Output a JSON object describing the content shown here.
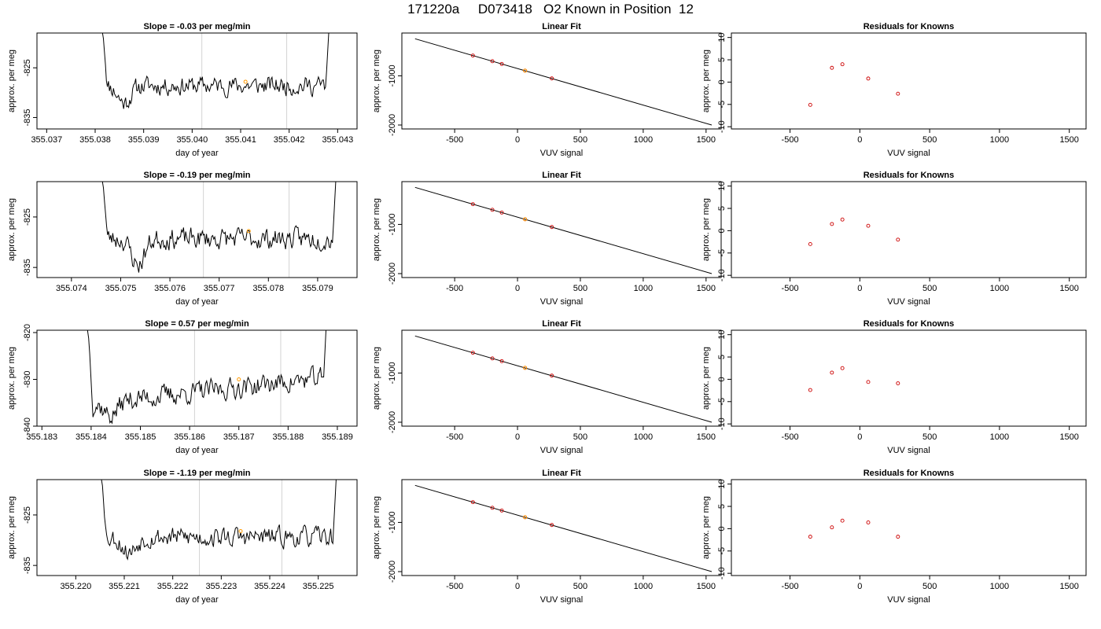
{
  "page": {
    "title": "171220a     D073418   O2 Known in Position  12"
  },
  "colors": {
    "trace": "#000000",
    "known_point": "#cc0000",
    "sample_point": "#ff9900",
    "marker_line": "#d3d3d3",
    "fit_line": "#000000"
  },
  "chart_data": [
    {
      "type": "line",
      "row": 0,
      "col": 0,
      "title": "Slope =  -0.03  per meg/min",
      "xlabel": "day of year",
      "ylabel": "approx. per meg",
      "xlim": [
        355.0368,
        355.0434
      ],
      "ylim": [
        -837.3,
        -818.0
      ],
      "xticks": [
        355.037,
        355.038,
        355.039,
        355.04,
        355.041,
        355.042,
        355.043
      ],
      "yticks": [
        -825,
        -835
      ],
      "trace": {
        "x_start": 355.03817,
        "x_end": 355.04275,
        "base": -828.6,
        "amp": 1.8,
        "seed": 11,
        "left_spike_to": -818.0,
        "right_spike_to": -818.0,
        "low_dip": [
          355.0386,
          -833.5
        ]
      },
      "vlines": [
        355.0402,
        355.04195
      ],
      "sample_point": [
        355.0411,
        -827.8
      ]
    },
    {
      "type": "line",
      "row": 1,
      "col": 0,
      "title": "Slope =  -0.19  per meg/min",
      "xlabel": "day of year",
      "ylabel": "approx. per meg",
      "xlim": [
        355.0733,
        355.0798
      ],
      "ylim": [
        -837.0,
        -818.0
      ],
      "xticks": [
        355.074,
        355.075,
        355.076,
        355.077,
        355.078,
        355.079
      ],
      "yticks": [
        -825,
        -835
      ],
      "trace": {
        "x_start": 355.07465,
        "x_end": 355.0793,
        "base": -829.3,
        "amp": 2.0,
        "seed": 23,
        "left_spike_to": -818.0,
        "right_spike_to": -818.0,
        "low_dip": [
          355.07535,
          -836.8
        ]
      },
      "vlines": [
        355.07668,
        355.07842
      ],
      "sample_point": [
        355.0776,
        -827.8
      ]
    },
    {
      "type": "line",
      "row": 2,
      "col": 0,
      "title": "Slope =  0.57  per meg/min",
      "xlabel": "day of year",
      "ylabel": "approx. per meg",
      "xlim": [
        355.1829,
        355.1894
      ],
      "ylim": [
        -840.0,
        -819.5
      ],
      "xticks": [
        355.183,
        355.184,
        355.185,
        355.186,
        355.187,
        355.188,
        355.189
      ],
      "yticks": [
        -820,
        -830,
        -840
      ],
      "trace": {
        "x_start": 355.18395,
        "x_end": 355.1887,
        "base": -832.5,
        "amp": 2.2,
        "seed": 37,
        "trend": 5.5,
        "left_spike_to": -819.5,
        "right_spike_to": -819.5,
        "low_dip": [
          355.1844,
          -839.5
        ]
      },
      "vlines": [
        355.1861,
        355.18785
      ],
      "sample_point": [
        355.187,
        -830.0
      ]
    },
    {
      "type": "line",
      "row": 3,
      "col": 0,
      "title": "Slope =  -1.19  per meg/min",
      "xlabel": "day of year",
      "ylabel": "approx. per meg",
      "xlim": [
        355.2192,
        355.2258
      ],
      "ylim": [
        -837.0,
        -818.0
      ],
      "xticks": [
        355.22,
        355.221,
        355.222,
        355.223,
        355.224,
        355.225
      ],
      "yticks": [
        -825,
        -835
      ],
      "trace": {
        "x_start": 355.22055,
        "x_end": 355.2253,
        "base": -829.4,
        "amp": 1.9,
        "seed": 53,
        "left_spike_to": -818.0,
        "right_spike_to": -818.0,
        "low_dip": [
          355.2211,
          -833.8
        ]
      },
      "vlines": [
        355.22255,
        355.22425
      ],
      "sample_point": [
        355.2234,
        -828.2
      ]
    },
    {
      "type": "scatter",
      "row": 0,
      "col": 1,
      "title": "Linear Fit",
      "xlabel": "VUV signal",
      "ylabel": "approx. per meg",
      "xlim": [
        -920,
        1620
      ],
      "ylim": [
        -2080,
        -130
      ],
      "xticks": [
        -500,
        0,
        500,
        1000,
        1500
      ],
      "yticks": [
        -1000,
        -2000
      ],
      "fit_line": [
        [
          -815,
          -247
        ],
        [
          1545,
          -2000
        ]
      ],
      "points": [
        [
          -355,
          -588
        ],
        [
          -200,
          -703
        ],
        [
          -125,
          -759
        ],
        [
          60,
          -895
        ],
        [
          273,
          -1053
        ]
      ],
      "sample_point": [
        60,
        -895
      ]
    },
    {
      "type": "scatter",
      "row": 1,
      "col": 1,
      "title": "Linear Fit",
      "xlabel": "VUV signal",
      "ylabel": "approx. per meg",
      "xlim": [
        -920,
        1620
      ],
      "ylim": [
        -2080,
        -130
      ],
      "xticks": [
        -500,
        0,
        500,
        1000,
        1500
      ],
      "yticks": [
        -1000,
        -2000
      ],
      "fit_line": [
        [
          -815,
          -247
        ],
        [
          1545,
          -2000
        ]
      ],
      "points": [
        [
          -355,
          -588
        ],
        [
          -200,
          -703
        ],
        [
          -125,
          -759
        ],
        [
          60,
          -895
        ],
        [
          273,
          -1053
        ]
      ],
      "sample_point": [
        60,
        -895
      ]
    },
    {
      "type": "scatter",
      "row": 2,
      "col": 1,
      "title": "Linear Fit",
      "xlabel": "VUV signal",
      "ylabel": "approx. per meg",
      "xlim": [
        -920,
        1620
      ],
      "ylim": [
        -2080,
        -130
      ],
      "xticks": [
        -500,
        0,
        500,
        1000,
        1500
      ],
      "yticks": [
        -1000,
        -2000
      ],
      "fit_line": [
        [
          -815,
          -247
        ],
        [
          1545,
          -2000
        ]
      ],
      "points": [
        [
          -355,
          -588
        ],
        [
          -200,
          -703
        ],
        [
          -125,
          -759
        ],
        [
          60,
          -895
        ],
        [
          273,
          -1053
        ]
      ],
      "sample_point": [
        60,
        -895
      ]
    },
    {
      "type": "scatter",
      "row": 3,
      "col": 1,
      "title": "Linear Fit",
      "xlabel": "VUV signal",
      "ylabel": "approx. per meg",
      "xlim": [
        -920,
        1620
      ],
      "ylim": [
        -2080,
        -130
      ],
      "xticks": [
        -500,
        0,
        500,
        1000,
        1500
      ],
      "yticks": [
        -1000,
        -2000
      ],
      "fit_line": [
        [
          -815,
          -247
        ],
        [
          1545,
          -2000
        ]
      ],
      "points": [
        [
          -355,
          -588
        ],
        [
          -200,
          -703
        ],
        [
          -125,
          -759
        ],
        [
          60,
          -895
        ],
        [
          273,
          -1053
        ]
      ],
      "sample_point": [
        60,
        -895
      ]
    },
    {
      "type": "scatter",
      "row": 0,
      "col": 2,
      "title": "Residuals for Knowns",
      "xlabel": "VUV signal",
      "ylabel": "approx. per meg",
      "xlim": [
        -920,
        1620
      ],
      "ylim": [
        -10.5,
        11
      ],
      "xticks": [
        -500,
        0,
        500,
        1000,
        1500
      ],
      "yticks": [
        10,
        5,
        0,
        -5,
        -10
      ],
      "points": [
        [
          -355,
          -5.1
        ],
        [
          -200,
          3.2
        ],
        [
          -125,
          4.0
        ],
        [
          60,
          0.8
        ],
        [
          273,
          -2.6
        ]
      ]
    },
    {
      "type": "scatter",
      "row": 1,
      "col": 2,
      "title": "Residuals for Knowns",
      "xlabel": "VUV signal",
      "ylabel": "approx. per meg",
      "xlim": [
        -920,
        1620
      ],
      "ylim": [
        -10.5,
        11
      ],
      "xticks": [
        -500,
        0,
        500,
        1000,
        1500
      ],
      "yticks": [
        10,
        5,
        0,
        -5,
        -10
      ],
      "points": [
        [
          -355,
          -3.0
        ],
        [
          -200,
          1.5
        ],
        [
          -125,
          2.5
        ],
        [
          60,
          1.1
        ],
        [
          273,
          -2.0
        ]
      ]
    },
    {
      "type": "scatter",
      "row": 2,
      "col": 2,
      "title": "Residuals for Knowns",
      "xlabel": "VUV signal",
      "ylabel": "approx. per meg",
      "xlim": [
        -920,
        1620
      ],
      "ylim": [
        -10.5,
        11
      ],
      "xticks": [
        -500,
        0,
        500,
        1000,
        1500
      ],
      "yticks": [
        10,
        5,
        0,
        -5,
        -10
      ],
      "points": [
        [
          -355,
          -2.4
        ],
        [
          -200,
          1.5
        ],
        [
          -125,
          2.5
        ],
        [
          60,
          -0.6
        ],
        [
          273,
          -0.9
        ]
      ]
    },
    {
      "type": "scatter",
      "row": 3,
      "col": 2,
      "title": "Residuals for Knowns",
      "xlabel": "VUV signal",
      "ylabel": "approx. per meg",
      "xlim": [
        -920,
        1620
      ],
      "ylim": [
        -10.5,
        11
      ],
      "xticks": [
        -500,
        0,
        500,
        1000,
        1500
      ],
      "yticks": [
        10,
        5,
        0,
        -5,
        -10
      ],
      "points": [
        [
          -355,
          -1.8
        ],
        [
          -200,
          0.3
        ],
        [
          -125,
          1.8
        ],
        [
          60,
          1.4
        ],
        [
          273,
          -1.8
        ]
      ]
    }
  ]
}
